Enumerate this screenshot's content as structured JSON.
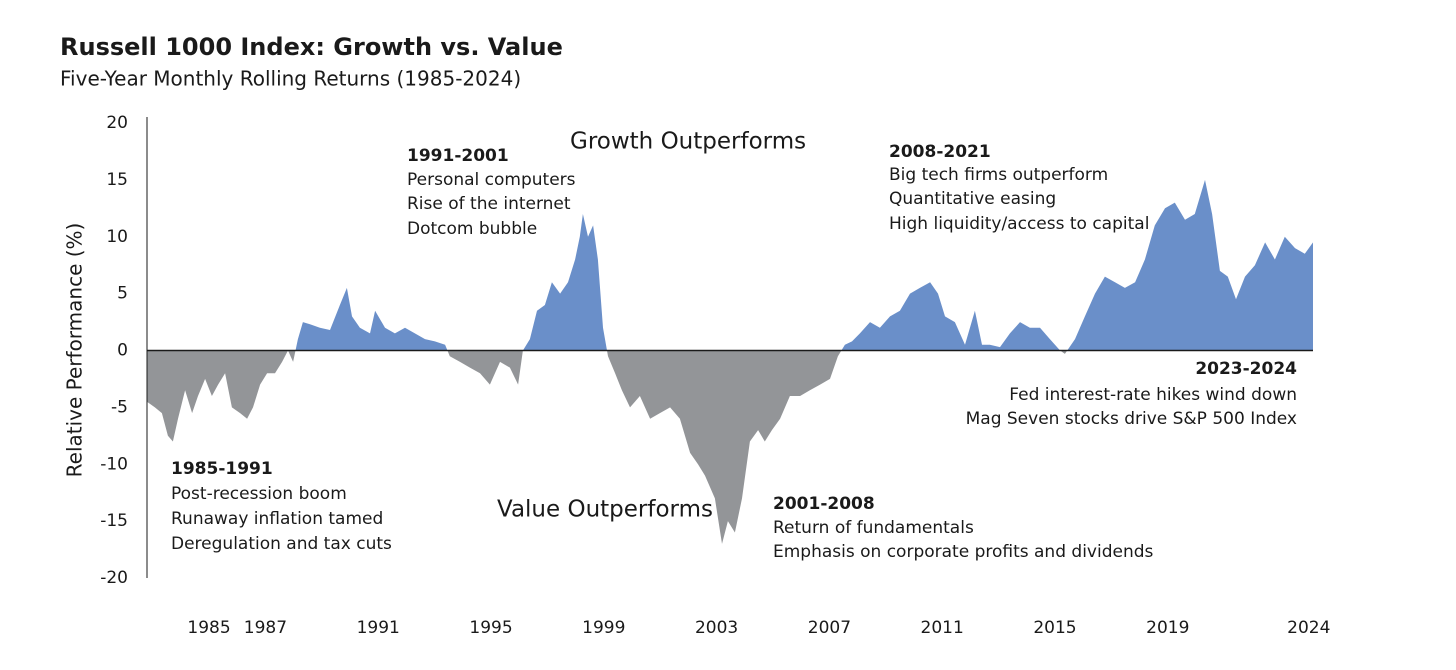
{
  "chart_data": {
    "type": "area",
    "title": "Russell 1000 Index: Growth vs. Value",
    "subtitle": "Five-Year Monthly Rolling Returns (1985-2024)",
    "y_label": "Relative Performance (%)",
    "region_labels": [
      "Growth Outperforms",
      "Value Outperforms"
    ],
    "annotations": [
      {
        "title": "1985-1991",
        "lines": [
          "Post-recession boom",
          "Runaway inflation tamed",
          "Deregulation and tax cuts"
        ]
      },
      {
        "title": "1991-2001",
        "lines": [
          "Personal computers",
          "Rise of the internet",
          "Dotcom bubble"
        ]
      },
      {
        "title": "2001-2008",
        "lines": [
          "Return of fundamentals",
          "Emphasis on corporate profits and dividends"
        ]
      },
      {
        "title": "2008-2021",
        "lines": [
          "Big tech firms outperform",
          "Quantitative easing",
          "High liquidity/access to capital"
        ]
      },
      {
        "title": "2023-2024",
        "lines": [
          "Fed interest-rate hikes wind down",
          "Mag Seven stocks drive S&P 500 Index"
        ]
      }
    ],
    "positive_color": "#6a8fc9",
    "negative_color": "#939598",
    "xlim": [
      1982.8,
      2024.15
    ],
    "xticks": [
      1985,
      1987,
      1991,
      1995,
      1999,
      2003,
      2007,
      2011,
      2015,
      2019,
      2024
    ],
    "ylim": [
      -20,
      20
    ],
    "yticks": [
      20,
      15,
      10,
      5,
      0,
      -5,
      -10,
      -15,
      -20
    ],
    "x": [
      1982.8,
      1983.08,
      1983.33,
      1983.54,
      1983.72,
      1983.9,
      1984.15,
      1984.4,
      1984.61,
      1984.86,
      1985.1,
      1985.32,
      1985.57,
      1985.81,
      1986.1,
      1986.35,
      1986.56,
      1986.81,
      1987.06,
      1987.34,
      1987.59,
      1987.8,
      1987.98,
      1988.15,
      1988.33,
      1988.58,
      1988.93,
      1989.29,
      1989.64,
      1989.89,
      1990.07,
      1990.35,
      1990.71,
      1990.89,
      1991.24,
      1991.59,
      1991.95,
      1992.3,
      1992.66,
      1993.01,
      1993.37,
      1993.54,
      1993.9,
      1994.25,
      1994.61,
      1994.96,
      1995.32,
      1995.67,
      1995.96,
      1996.13,
      1996.38,
      1996.63,
      1996.91,
      1997.16,
      1997.45,
      1997.73,
      1997.98,
      1998.15,
      1998.26,
      1998.44,
      1998.62,
      1998.79,
      1998.97,
      1999.15,
      1999.4,
      1999.64,
      1999.93,
      2000.28,
      2000.64,
      2000.99,
      2001.35,
      2001.7,
      2002.06,
      2002.34,
      2002.59,
      2002.94,
      2003.19,
      2003.4,
      2003.65,
      2003.9,
      2004.18,
      2004.47,
      2004.71,
      2004.96,
      2005.25,
      2005.6,
      2005.96,
      2006.31,
      2006.67,
      2007.02,
      2007.3,
      2007.55,
      2007.8,
      2008.08,
      2008.44,
      2008.79,
      2009.15,
      2009.5,
      2009.86,
      2010.21,
      2010.57,
      2010.85,
      2011.1,
      2011.45,
      2011.81,
      2012.16,
      2012.41,
      2012.69,
      2013.05,
      2013.4,
      2013.76,
      2014.11,
      2014.47,
      2014.82,
      2015.18,
      2015.35,
      2015.71,
      2016.06,
      2016.42,
      2016.77,
      2017.13,
      2017.48,
      2017.84,
      2018.19,
      2018.54,
      2018.9,
      2019.25,
      2019.61,
      2019.96,
      2020.32,
      2020.57,
      2020.85,
      2021.13,
      2021.42,
      2021.74,
      2022.09,
      2022.45,
      2022.8,
      2023.15,
      2023.51,
      2023.86,
      2024.15
    ],
    "values": [
      -4.5,
      -5,
      -5.5,
      -7.5,
      -8,
      -6,
      -3.5,
      -5.5,
      -4,
      -2.5,
      -4,
      -3,
      -2,
      -5,
      -5.5,
      -6,
      -5,
      -3,
      -2,
      -2,
      -1,
      0,
      -1,
      1,
      2.5,
      2.3,
      2,
      1.8,
      4,
      5.5,
      3,
      2,
      1.5,
      3.5,
      2,
      1.5,
      2,
      1.5,
      1,
      0.8,
      0.5,
      -0.5,
      -1,
      -1.5,
      -2,
      -3,
      -1,
      -1.5,
      -3,
      0,
      1,
      3.5,
      4,
      6,
      5,
      6,
      8,
      10,
      12,
      10,
      11,
      8,
      2,
      -0.5,
      -2,
      -3.5,
      -5,
      -4,
      -6,
      -5.5,
      -5,
      -6,
      -9,
      -10,
      -11,
      -13,
      -17,
      -15,
      -16,
      -13,
      -8,
      -7,
      -8,
      -7,
      -6,
      -4,
      -4,
      -3.5,
      -3,
      -2.5,
      -0.5,
      0.5,
      0.8,
      1.5,
      2.5,
      2,
      3,
      3.5,
      5,
      5.5,
      6,
      5,
      3,
      2.5,
      0.5,
      3.5,
      0.5,
      0.5,
      0.3,
      1.5,
      2.5,
      2,
      2,
      1,
      0,
      -0.3,
      1,
      3,
      5,
      6.5,
      6,
      5.5,
      6,
      8,
      11,
      12.5,
      13,
      11.5,
      12,
      15,
      12,
      7,
      6.5,
      4.5,
      6.5,
      7.5,
      9.5,
      8,
      10,
      9,
      8.5,
      9.5
    ]
  }
}
